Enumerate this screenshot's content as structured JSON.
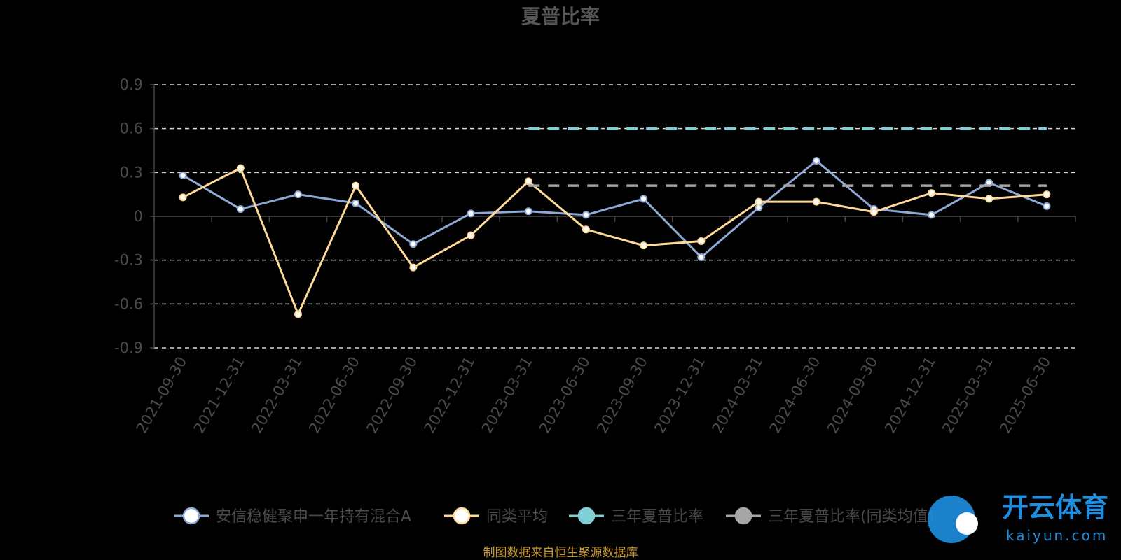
{
  "chart_data": {
    "type": "line",
    "title": "夏普比率",
    "categories": [
      "2021-09-30",
      "2021-12-31",
      "2022-03-31",
      "2022-06-30",
      "2022-09-30",
      "2022-12-31",
      "2023-03-31",
      "2023-06-30",
      "2023-09-30",
      "2023-12-31",
      "2024-03-31",
      "2024-06-30",
      "2024-09-30",
      "2024-12-31",
      "2025-03-31",
      "2025-06-30"
    ],
    "yticks": [
      0.9,
      0.6,
      0.3,
      0,
      -0.3,
      -0.6,
      -0.9
    ],
    "ytick_labels": [
      "0.9",
      "0.6",
      "0.3",
      "0",
      "-0.3",
      "-0.6",
      "-0.9"
    ],
    "ylim": [
      -0.9,
      0.9
    ],
    "grid": true,
    "legend_position": "bottom",
    "series": [
      {
        "name": "安信稳健聚申一年持有混合A",
        "color": "#8ea9d8",
        "style": "solid",
        "values": [
          0.28,
          0.05,
          0.15,
          0.09,
          -0.19,
          0.02,
          0.035,
          0.01,
          0.12,
          -0.28,
          0.06,
          0.38,
          0.05,
          0.01,
          0.23,
          0.07
        ]
      },
      {
        "name": "同类平均",
        "color": "#ffd998",
        "style": "solid",
        "values": [
          0.13,
          0.33,
          -0.67,
          0.21,
          -0.35,
          -0.13,
          0.24,
          -0.09,
          -0.2,
          -0.17,
          0.1,
          0.1,
          0.03,
          0.16,
          0.12,
          0.15
        ]
      },
      {
        "name": "三年夏普比率",
        "color": "#80cfd6",
        "style": "dashed",
        "values": [
          null,
          null,
          null,
          null,
          null,
          null,
          0.6,
          0.6,
          0.6,
          0.6,
          0.6,
          0.6,
          0.6,
          0.6,
          0.6,
          0.6
        ]
      },
      {
        "name": "三年夏普比率(同类均值)",
        "color": "#a6a6a6",
        "style": "dashed",
        "values": [
          null,
          null,
          null,
          null,
          null,
          null,
          0.21,
          0.21,
          0.21,
          0.21,
          0.21,
          0.21,
          0.21,
          0.21,
          0.21,
          0.21
        ]
      }
    ]
  },
  "source_note": "制图数据来自恒生聚源数据库",
  "watermark": {
    "text": "开云体育",
    "sub": "kaiyun.com"
  }
}
